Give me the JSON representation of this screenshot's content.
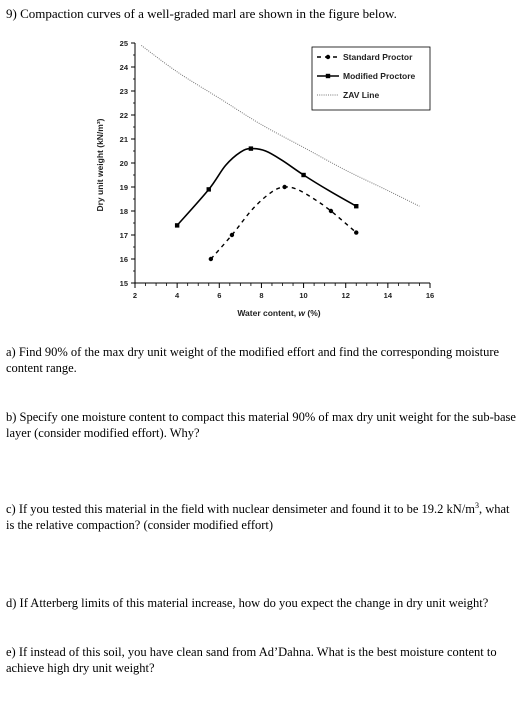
{
  "question_title": "9) Compaction curves of a well-graded marl are shown in the figure below.",
  "questions": {
    "a": "a) Find 90% of the max dry unit weight of the modified effort and find the corresponding moisture content range.",
    "b": "b) Specify one moisture content to compact this material 90% of max dry unit weight for the sub-base layer (consider modified effort). Why?",
    "c_before": "c) If you tested this material in the field with nuclear densimeter and found it to be 19.2 kN/m",
    "c_sup": "3",
    "c_after": ", what is the relative compaction? (consider modified effort)",
    "d": "d) If Atterberg limits of this material increase, how do you expect the change in dry unit weight?",
    "e": "e) If instead of this soil, you have clean sand from Ad’Dahna. What is the best moisture content to achieve high dry unit weight?"
  },
  "chart_data": {
    "type": "line",
    "xlabel_prefix": "Water content, ",
    "xlabel_var": "w",
    "xlabel_suffix": " (%)",
    "ylabel": "Dry unit weight (kN/m³)",
    "xlim": [
      2,
      16
    ],
    "ylim": [
      15,
      25
    ],
    "xticks": [
      2,
      4,
      6,
      8,
      10,
      12,
      14,
      16
    ],
    "yticks": [
      15,
      16,
      17,
      18,
      19,
      20,
      21,
      22,
      23,
      24,
      25
    ],
    "legend_position": "top-right",
    "series": [
      {
        "name": "Standard Proctor",
        "style": "dashed",
        "marker": "circle",
        "points": [
          [
            5.6,
            16.0
          ],
          [
            6.6,
            17.0
          ],
          [
            9.1,
            19.0
          ],
          [
            11.3,
            18.0
          ],
          [
            12.5,
            17.1
          ]
        ],
        "curve": [
          [
            5.6,
            16.0
          ],
          [
            6.6,
            17.0
          ],
          [
            7.6,
            18.1
          ],
          [
            8.5,
            18.8
          ],
          [
            9.1,
            19.0
          ],
          [
            9.7,
            18.9
          ],
          [
            10.5,
            18.5
          ],
          [
            11.3,
            18.0
          ],
          [
            12.5,
            17.1
          ]
        ]
      },
      {
        "name": "Modified Proctore",
        "style": "solid",
        "marker": "square",
        "points": [
          [
            4.0,
            17.4
          ],
          [
            5.5,
            18.9
          ],
          [
            7.5,
            20.6
          ],
          [
            10.0,
            19.5
          ],
          [
            12.5,
            18.2
          ]
        ],
        "curve": [
          [
            4.0,
            17.4
          ],
          [
            5.5,
            18.9
          ],
          [
            6.3,
            19.9
          ],
          [
            7.0,
            20.45
          ],
          [
            7.5,
            20.6
          ],
          [
            8.2,
            20.5
          ],
          [
            9.0,
            20.1
          ],
          [
            10.0,
            19.5
          ],
          [
            11.2,
            18.85
          ],
          [
            12.5,
            18.2
          ]
        ]
      },
      {
        "name": "ZAV Line",
        "style": "dotted",
        "marker": "none",
        "points": [],
        "curve": [
          [
            2.3,
            24.9
          ],
          [
            4.0,
            23.8
          ],
          [
            6.0,
            22.7
          ],
          [
            8.0,
            21.6
          ],
          [
            10.0,
            20.65
          ],
          [
            12.0,
            19.7
          ],
          [
            14.0,
            18.85
          ],
          [
            15.5,
            18.2
          ]
        ]
      }
    ]
  }
}
